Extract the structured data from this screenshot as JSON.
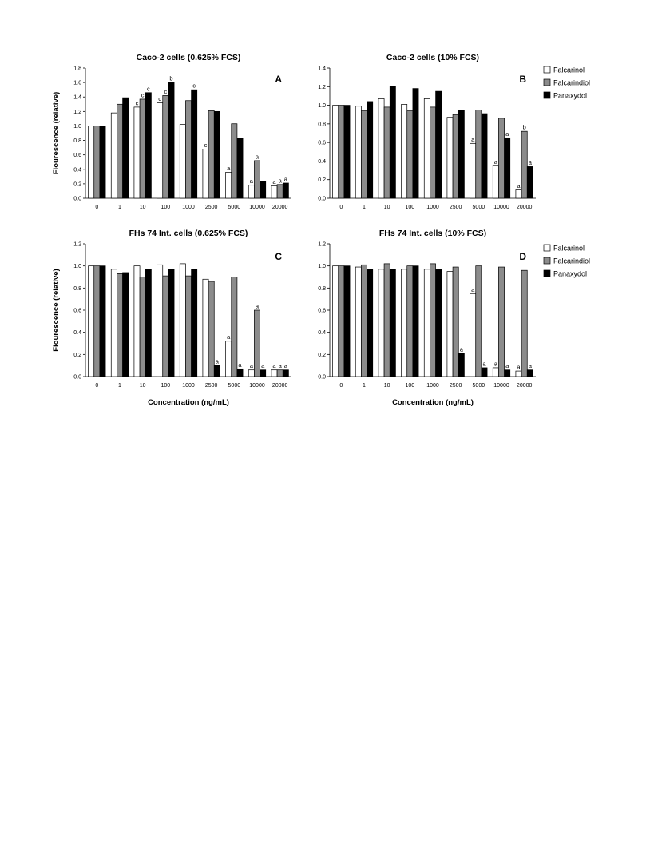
{
  "chart_data": [
    {
      "type": "bar",
      "panel": "A",
      "title": "Caco-2 cells (0.625% FCS)",
      "ylabel": "Flourescence (relative)",
      "xlabel": "",
      "ylim": [
        0,
        1.8
      ],
      "yticks": [
        "0.0",
        "0.2",
        "0.4",
        "0.6",
        "0.8",
        "1.0",
        "1.2",
        "1.4",
        "1.6",
        "1.8"
      ],
      "categories": [
        "0",
        "1",
        "10",
        "100",
        "1000",
        "2500",
        "5000",
        "10000",
        "20000"
      ],
      "series": [
        {
          "name": "Falcarinol",
          "values": [
            1.0,
            1.18,
            1.26,
            1.32,
            1.02,
            0.68,
            0.36,
            0.18,
            0.17
          ],
          "labels": [
            "",
            "",
            "c",
            "c",
            "",
            "c",
            "a",
            "a",
            "a"
          ]
        },
        {
          "name": "Falcarindiol",
          "values": [
            1.0,
            1.3,
            1.37,
            1.42,
            1.35,
            1.21,
            1.03,
            0.52,
            0.19
          ],
          "labels": [
            "",
            "",
            "c",
            "c",
            "",
            "",
            "",
            "a",
            "a"
          ]
        },
        {
          "name": "Panaxydol",
          "values": [
            1.0,
            1.39,
            1.46,
            1.6,
            1.5,
            1.2,
            0.83,
            0.23,
            0.21
          ],
          "labels": [
            "",
            "",
            "c",
            "b",
            "c",
            "",
            "",
            "",
            "a"
          ]
        }
      ]
    },
    {
      "type": "bar",
      "panel": "B",
      "title": "Caco-2 cells (10% FCS)",
      "ylabel": "",
      "xlabel": "",
      "ylim": [
        0,
        1.4
      ],
      "yticks": [
        "0.0",
        "0.2",
        "0.4",
        "0.6",
        "0.8",
        "1.0",
        "1.2",
        "1.4"
      ],
      "categories": [
        "0",
        "1",
        "10",
        "100",
        "1000",
        "2500",
        "5000",
        "10000",
        "20000"
      ],
      "series": [
        {
          "name": "Falcarinol",
          "values": [
            1.0,
            0.99,
            1.07,
            1.01,
            1.07,
            0.87,
            0.59,
            0.35,
            0.09
          ],
          "labels": [
            "",
            "",
            "",
            "",
            "",
            "",
            "a",
            "a",
            "a"
          ]
        },
        {
          "name": "Falcarindiol",
          "values": [
            1.0,
            0.94,
            0.98,
            0.94,
            0.98,
            0.9,
            0.95,
            0.86,
            0.72
          ],
          "labels": [
            "",
            "",
            "",
            "",
            "",
            "",
            "",
            "",
            "b"
          ]
        },
        {
          "name": "Panaxydol",
          "values": [
            1.0,
            1.04,
            1.2,
            1.18,
            1.15,
            0.95,
            0.91,
            0.65,
            0.34
          ],
          "labels": [
            "",
            "",
            "",
            "",
            "",
            "",
            "",
            "a",
            "a"
          ]
        }
      ]
    },
    {
      "type": "bar",
      "panel": "C",
      "title": "FHs 74 Int. cells (0.625% FCS)",
      "ylabel": "Flourescence (relative)",
      "xlabel": "Concentration (ng/mL)",
      "ylim": [
        0,
        1.2
      ],
      "yticks": [
        "0.0",
        "0.2",
        "0.4",
        "0.6",
        "0.8",
        "1.0",
        "1.2"
      ],
      "categories": [
        "0",
        "1",
        "10",
        "100",
        "1000",
        "2500",
        "5000",
        "10000",
        "20000"
      ],
      "series": [
        {
          "name": "Falcarinol",
          "values": [
            1.0,
            0.97,
            1.0,
            1.01,
            1.02,
            0.88,
            0.32,
            0.06,
            0.06
          ],
          "labels": [
            "",
            "",
            "",
            "",
            "",
            "",
            "a",
            "a",
            "a"
          ]
        },
        {
          "name": "Falcarindiol",
          "values": [
            1.0,
            0.93,
            0.9,
            0.91,
            0.91,
            0.86,
            0.9,
            0.6,
            0.06
          ],
          "labels": [
            "",
            "",
            "",
            "",
            "",
            "",
            "",
            "a",
            "a"
          ]
        },
        {
          "name": "Panaxydol",
          "values": [
            1.0,
            0.94,
            0.97,
            0.97,
            0.97,
            0.1,
            0.07,
            0.06,
            0.06
          ],
          "labels": [
            "",
            "",
            "",
            "",
            "",
            "a",
            "a",
            "a",
            "a"
          ]
        }
      ]
    },
    {
      "type": "bar",
      "panel": "D",
      "title": "FHs 74 Int. cells (10% FCS)",
      "ylabel": "",
      "xlabel": "Concentration (ng/mL)",
      "ylim": [
        0,
        1.2
      ],
      "yticks": [
        "0.0",
        "0.2",
        "0.4",
        "0.6",
        "0.8",
        "1.0",
        "1.2"
      ],
      "categories": [
        "0",
        "1",
        "10",
        "100",
        "1000",
        "2500",
        "5000",
        "10000",
        "20000"
      ],
      "series": [
        {
          "name": "Falcarinol",
          "values": [
            1.0,
            0.99,
            0.97,
            0.97,
            0.97,
            0.95,
            0.75,
            0.08,
            0.05
          ],
          "labels": [
            "",
            "",
            "",
            "",
            "",
            "",
            "a",
            "a",
            "a"
          ]
        },
        {
          "name": "Falcarindiol",
          "values": [
            1.0,
            1.01,
            1.02,
            1.0,
            1.02,
            0.99,
            1.0,
            0.99,
            0.96
          ],
          "labels": [
            "",
            "",
            "",
            "",
            "",
            "",
            "",
            "",
            ""
          ]
        },
        {
          "name": "Panaxydol",
          "values": [
            1.0,
            0.97,
            0.97,
            1.0,
            0.97,
            0.21,
            0.08,
            0.06,
            0.06
          ],
          "labels": [
            "",
            "",
            "",
            "",
            "",
            "a",
            "a",
            "a",
            "a"
          ]
        }
      ]
    }
  ],
  "legend": [
    {
      "name": "Falcarinol",
      "color": "#ffffff"
    },
    {
      "name": "Falcarindiol",
      "color": "#8c8c8c"
    },
    {
      "name": "Panaxydol",
      "color": "#000000"
    }
  ],
  "series_colors": [
    "#ffffff",
    "#8c8c8c",
    "#000000"
  ]
}
